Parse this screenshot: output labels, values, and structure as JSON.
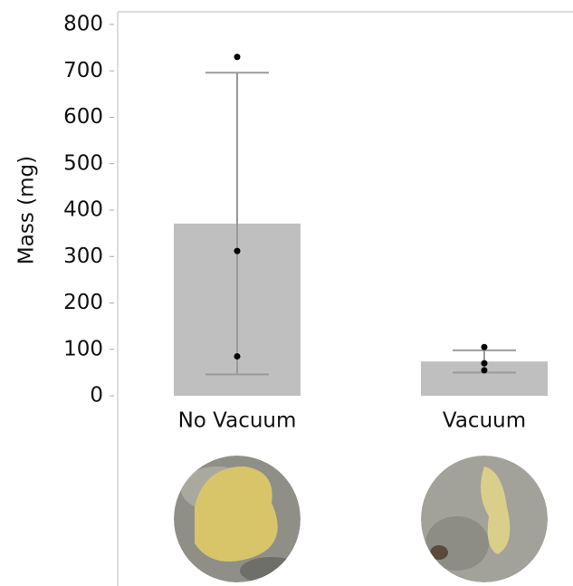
{
  "chart_data": {
    "type": "bar",
    "y_label": "Mass (mg)",
    "categories": [
      "No Vacuum",
      "Vacuum"
    ],
    "values": [
      371,
      74
    ],
    "errors": [
      325,
      24
    ],
    "points": [
      [
        730,
        312,
        85
      ],
      [
        105,
        70,
        55
      ]
    ],
    "color": "#bfbfbf",
    "ylim": [
      0,
      800
    ],
    "yticks": [
      0,
      100,
      200,
      300,
      400,
      500,
      600,
      700,
      800
    ]
  }
}
